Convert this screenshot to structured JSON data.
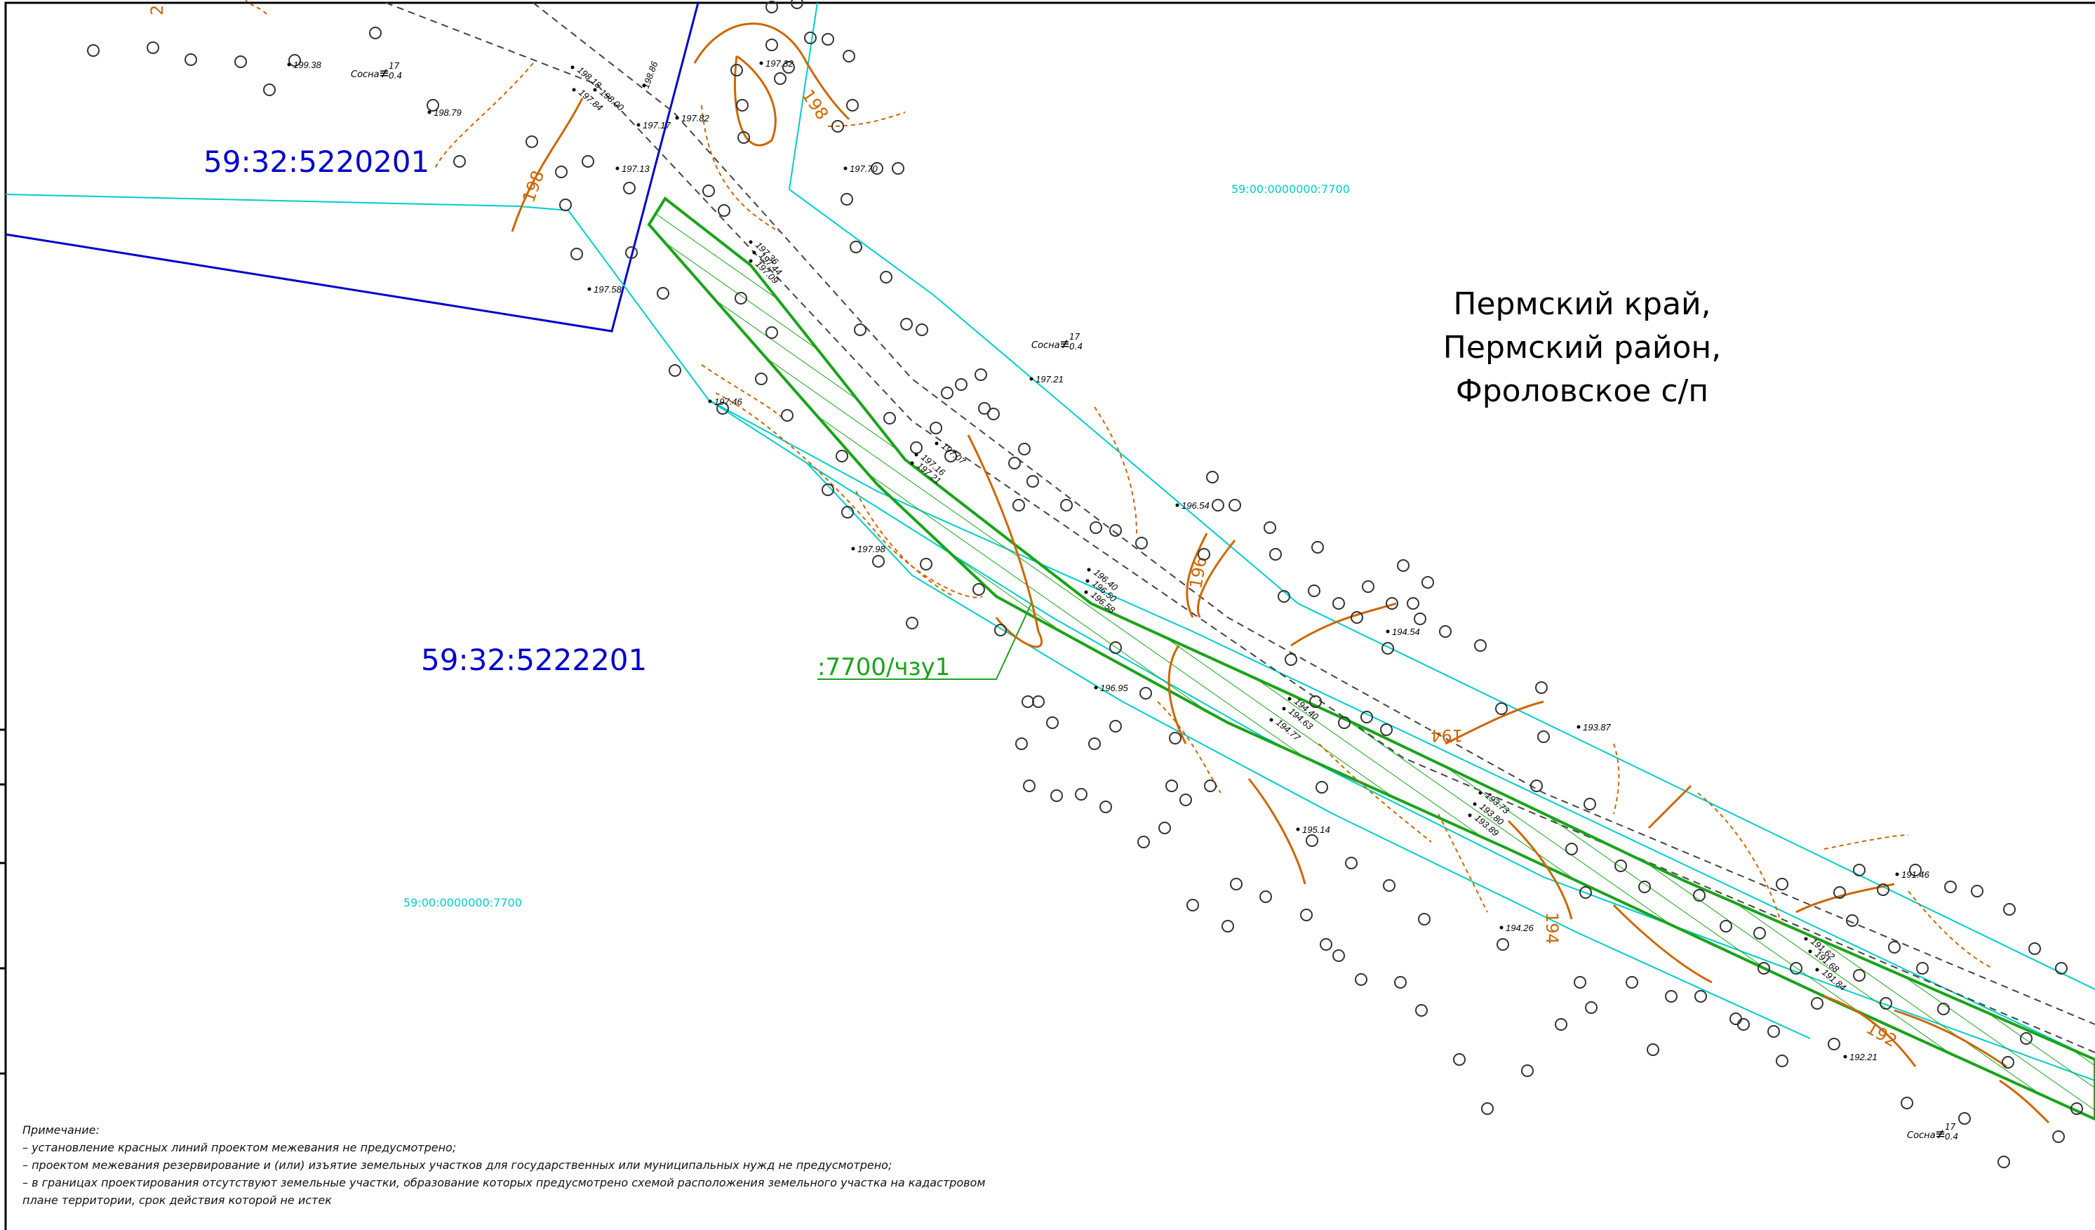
{
  "parcels": {
    "upper_left": "59:32:5220201",
    "lower_left": "59:32:5222201",
    "cadastral_top": "59:00:0000000:7700",
    "cadastral_bottom": "59:00:0000000:7700",
    "zone_label": ":7700/чзу1"
  },
  "region": {
    "line1": "Пермский край,",
    "line2": "Пермский район,",
    "line3": "Фроловское с/п"
  },
  "trees": [
    {
      "species": "Сосна",
      "top": "17",
      "bottom": "0.4"
    },
    {
      "species": "Сосна",
      "top": "17",
      "bottom": "0.4"
    },
    {
      "species": "Сосна",
      "top": "17",
      "bottom": "0.4"
    }
  ],
  "contours": [
    "198",
    "198",
    "196",
    "194",
    "194",
    "192",
    "2"
  ],
  "elevations": [
    "199.38",
    "198.79",
    "198.18",
    "198.00",
    "197.84",
    "198.86",
    "197.17",
    "197.82",
    "197.13",
    "197.32",
    "197.70",
    "197.58",
    "197.46",
    "197.36",
    "197.44",
    "197.09",
    "197.21",
    "197.07",
    "197.16",
    "197.21",
    "196.54",
    "197.98",
    "196.40",
    "196.50",
    "196.58",
    "194.54",
    "196.95",
    "194.40",
    "194.63",
    "194.77",
    "193.87",
    "195.14",
    "193.73",
    "193.80",
    "193.89",
    "194.26",
    "191.46",
    "191.62",
    "191.68",
    "191.84",
    "192.21"
  ],
  "note": {
    "title": "Примечание:",
    "lines": [
      "– установление красных линий проектом межевания не предусмотрено;",
      "– проектом межевания резервирование и (или) изъятие земельных участков для государственных или муниципальных нужд не предусмотрено;",
      "– в границах проектирования отсутствуют земельные участки, образование которых предусмотрено схемой расположения земельного участка на кадастровом",
      "плане территории, срок действия которой не истек"
    ]
  },
  "colors": {
    "parcel_blue": "#0000cc",
    "boundary_cyan": "#00cccc",
    "zone_green": "#1aa31a",
    "contour_orange": "#cc6600"
  }
}
